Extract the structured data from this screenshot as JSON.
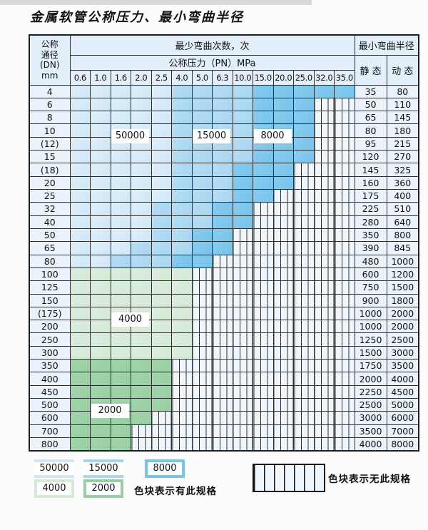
{
  "title": "金属软管公称压力、最小弯曲半径",
  "table": {
    "dn_header_lines": [
      "公称",
      "通径",
      "(DN)",
      "mm"
    ],
    "bend_cycles_header": "最少弯曲次数，次",
    "pressure_header": "公称压力（PN）MPa",
    "radius_header": "最小弯曲半径",
    "static_header": "静 态",
    "dynamic_header": "动 态",
    "pressure_columns": [
      "0.6",
      "1.0",
      "1.6",
      "2.0",
      "2.5",
      "4.0",
      "5.0",
      "6.3",
      "10.0",
      "15.0",
      "20.0",
      "25.0",
      "32.0",
      "35.0"
    ],
    "rows": [
      {
        "dn": "4",
        "static": "35",
        "dynamic": "80",
        "band": "blue",
        "end": 13,
        "med": 5,
        "dark": 9
      },
      {
        "dn": "6",
        "static": "50",
        "dynamic": "110",
        "band": "blue",
        "end": 11,
        "med": 5,
        "dark": 9
      },
      {
        "dn": "8",
        "static": "65",
        "dynamic": "145",
        "band": "blue",
        "end": 11,
        "med": 5,
        "dark": 9
      },
      {
        "dn": "10",
        "static": "80",
        "dynamic": "180",
        "band": "blue",
        "end": 11,
        "med": 5,
        "dark": 9
      },
      {
        "dn": "(12)",
        "static": "95",
        "dynamic": "215",
        "band": "blue",
        "end": 11,
        "med": 5,
        "dark": 9
      },
      {
        "dn": "15",
        "static": "120",
        "dynamic": "270",
        "band": "blue",
        "end": 11,
        "med": 5,
        "dark": 9
      },
      {
        "dn": "(18)",
        "static": "145",
        "dynamic": "325",
        "band": "blue",
        "end": 10,
        "med": 5,
        "dark": 8
      },
      {
        "dn": "20",
        "static": "160",
        "dynamic": "360",
        "band": "blue",
        "end": 10,
        "med": 5,
        "dark": 8
      },
      {
        "dn": "25",
        "static": "175",
        "dynamic": "400",
        "band": "blue",
        "end": 9,
        "med": 5,
        "dark": 8
      },
      {
        "dn": "32",
        "static": "225",
        "dynamic": "510",
        "band": "blue",
        "end": 8,
        "med": 4,
        "dark": 7
      },
      {
        "dn": "40",
        "static": "280",
        "dynamic": "640",
        "band": "blue",
        "end": 8,
        "med": 4,
        "dark": 7
      },
      {
        "dn": "50",
        "static": "350",
        "dynamic": "800",
        "band": "blue",
        "end": 7,
        "med": 4,
        "dark": 6
      },
      {
        "dn": "65",
        "static": "390",
        "dynamic": "845",
        "band": "blue",
        "end": 7,
        "med": 3,
        "dark": 6
      },
      {
        "dn": "80",
        "static": "480",
        "dynamic": "1000",
        "band": "blue",
        "end": 6,
        "med": 2,
        "dark": 5
      },
      {
        "dn": "100",
        "static": "600",
        "dynamic": "1200",
        "band": "green-light",
        "end": 5
      },
      {
        "dn": "125",
        "static": "750",
        "dynamic": "1500",
        "band": "green-light",
        "end": 5
      },
      {
        "dn": "150",
        "static": "900",
        "dynamic": "1800",
        "band": "green-light",
        "end": 5
      },
      {
        "dn": "(175)",
        "static": "1000",
        "dynamic": "2000",
        "band": "green-light",
        "end": 5
      },
      {
        "dn": "200",
        "static": "1000",
        "dynamic": "2000",
        "band": "green-light",
        "end": 5
      },
      {
        "dn": "250",
        "static": "1250",
        "dynamic": "2500",
        "band": "green-light",
        "end": 5
      },
      {
        "dn": "300",
        "static": "1500",
        "dynamic": "3000",
        "band": "green-light",
        "end": 5
      },
      {
        "dn": "350",
        "static": "1750",
        "dynamic": "3500",
        "band": "green-dark",
        "end": 4
      },
      {
        "dn": "400",
        "static": "2000",
        "dynamic": "4000",
        "band": "green-dark",
        "end": 4
      },
      {
        "dn": "450",
        "static": "2250",
        "dynamic": "4500",
        "band": "green-dark",
        "end": 4
      },
      {
        "dn": "500",
        "static": "2500",
        "dynamic": "5000",
        "band": "green-dark",
        "end": 4
      },
      {
        "dn": "600",
        "static": "3000",
        "dynamic": "6000",
        "band": "green-dark",
        "end": 3
      },
      {
        "dn": "700",
        "static": "3500",
        "dynamic": "7000",
        "band": "green-dark",
        "end": 2
      },
      {
        "dn": "800",
        "static": "4000",
        "dynamic": "8000",
        "band": "green-dark",
        "end": 2
      }
    ]
  },
  "annotations": [
    {
      "text": "50000",
      "cols": [
        2,
        3
      ],
      "rows": [
        3,
        4
      ]
    },
    {
      "text": "15000",
      "cols": [
        6,
        7
      ],
      "rows": [
        3,
        4
      ]
    },
    {
      "text": "8000",
      "cols": [
        9,
        10
      ],
      "rows": [
        3,
        4
      ]
    },
    {
      "text": "4000",
      "cols": [
        2,
        3
      ],
      "rows": [
        17,
        18
      ]
    },
    {
      "text": "2000",
      "cols": [
        1,
        2
      ],
      "rows": [
        24,
        25
      ]
    }
  ],
  "legend": {
    "items": [
      {
        "label": "50000",
        "shade": "blue_light"
      },
      {
        "label": "15000",
        "shade": "blue_medium"
      },
      {
        "label": "8000",
        "shade": "blue_dark"
      },
      {
        "label": "4000",
        "shade": "green_light"
      },
      {
        "label": "2000",
        "shade": "green_dark"
      }
    ],
    "has_spec_note": "色块表示有此规格",
    "no_spec_note": "色块表示无此规格"
  },
  "colors": {
    "blue_light": "#cfe7f6",
    "blue_medium": "#a7d6f0",
    "blue_dark": "#76c4ec",
    "green_light": "#d4e9d6",
    "green_dark": "#97cfa2",
    "header_bg": "#e2effa",
    "panel_bg": "#eaf3fb",
    "striped_bg": "#eef5fb",
    "grid": "#2e2e2e"
  }
}
